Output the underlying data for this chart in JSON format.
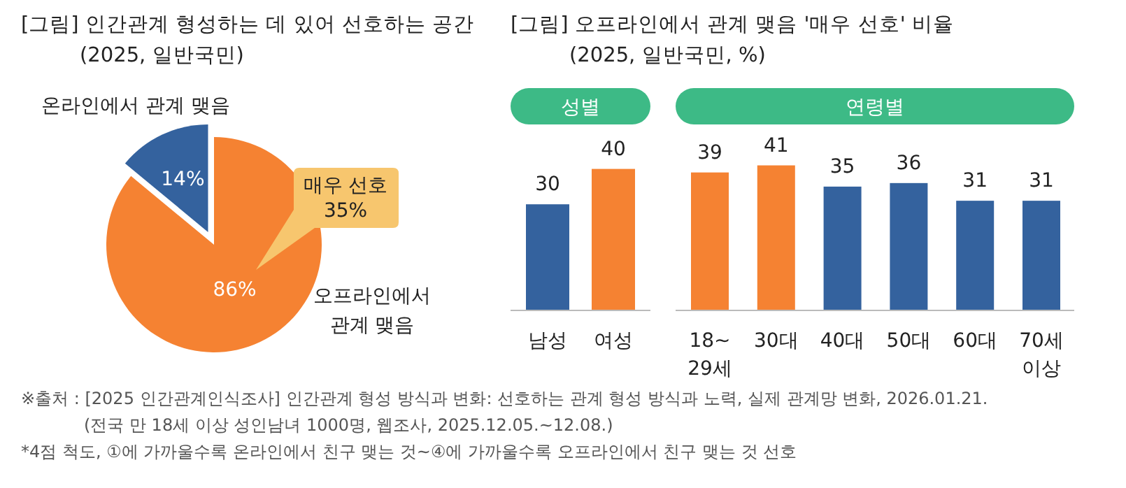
{
  "chart_data": [
    {
      "type": "pie",
      "title": "[그림] 인간관계 형성하는 데 있어 선호하는 공간",
      "subtitle": "(2025, 일반국민)",
      "categories": [
        "온라인에서 관계 맺음",
        "오프라인에서 관계 맺음"
      ],
      "values": [
        14,
        86
      ],
      "colors": [
        "#34629e",
        "#f58232"
      ],
      "value_labels": [
        "14%",
        "86%"
      ],
      "annotations": [
        "매우 선호 35%"
      ]
    },
    {
      "type": "bar",
      "title": "[그림] 오프라인에서 관계 맺음 '매우 선호' 비율",
      "subtitle": "(2025, 일반국민, %)",
      "categories": [
        "남성",
        "여성"
      ],
      "values": [
        30,
        40
      ],
      "colors": [
        "#34629e",
        "#f58232"
      ],
      "data_labels": true,
      "annotations": [
        "성별"
      ]
    },
    {
      "type": "bar",
      "categories": [
        "18~ 29세",
        "30대",
        "40대",
        "50대",
        "60대",
        "70세 이상"
      ],
      "values": [
        39,
        41,
        35,
        36,
        31,
        31
      ],
      "colors": [
        "#f58232",
        "#f58232",
        "#34629e",
        "#34629e",
        "#34629e",
        "#34629e"
      ],
      "data_labels": true,
      "annotations": [
        "연령별",
        "※출처 : [2025 인간관계인식조사] 인간관계 형성 방식과 변화: 선호하는 관계 형성 방식과 노력, 실제 관계망 변화, 2026.01.21.",
        "(전국 만 18세 이상 성인남녀 1000명, 웹조사, 2025.12.05.~12.08.)",
        "*4점 척도, ①에 가까울수록 온라인에서 친구 맺는 것~④에 가까울수록 오프라인에서 친구 맺는 것 선호"
      ]
    }
  ]
}
